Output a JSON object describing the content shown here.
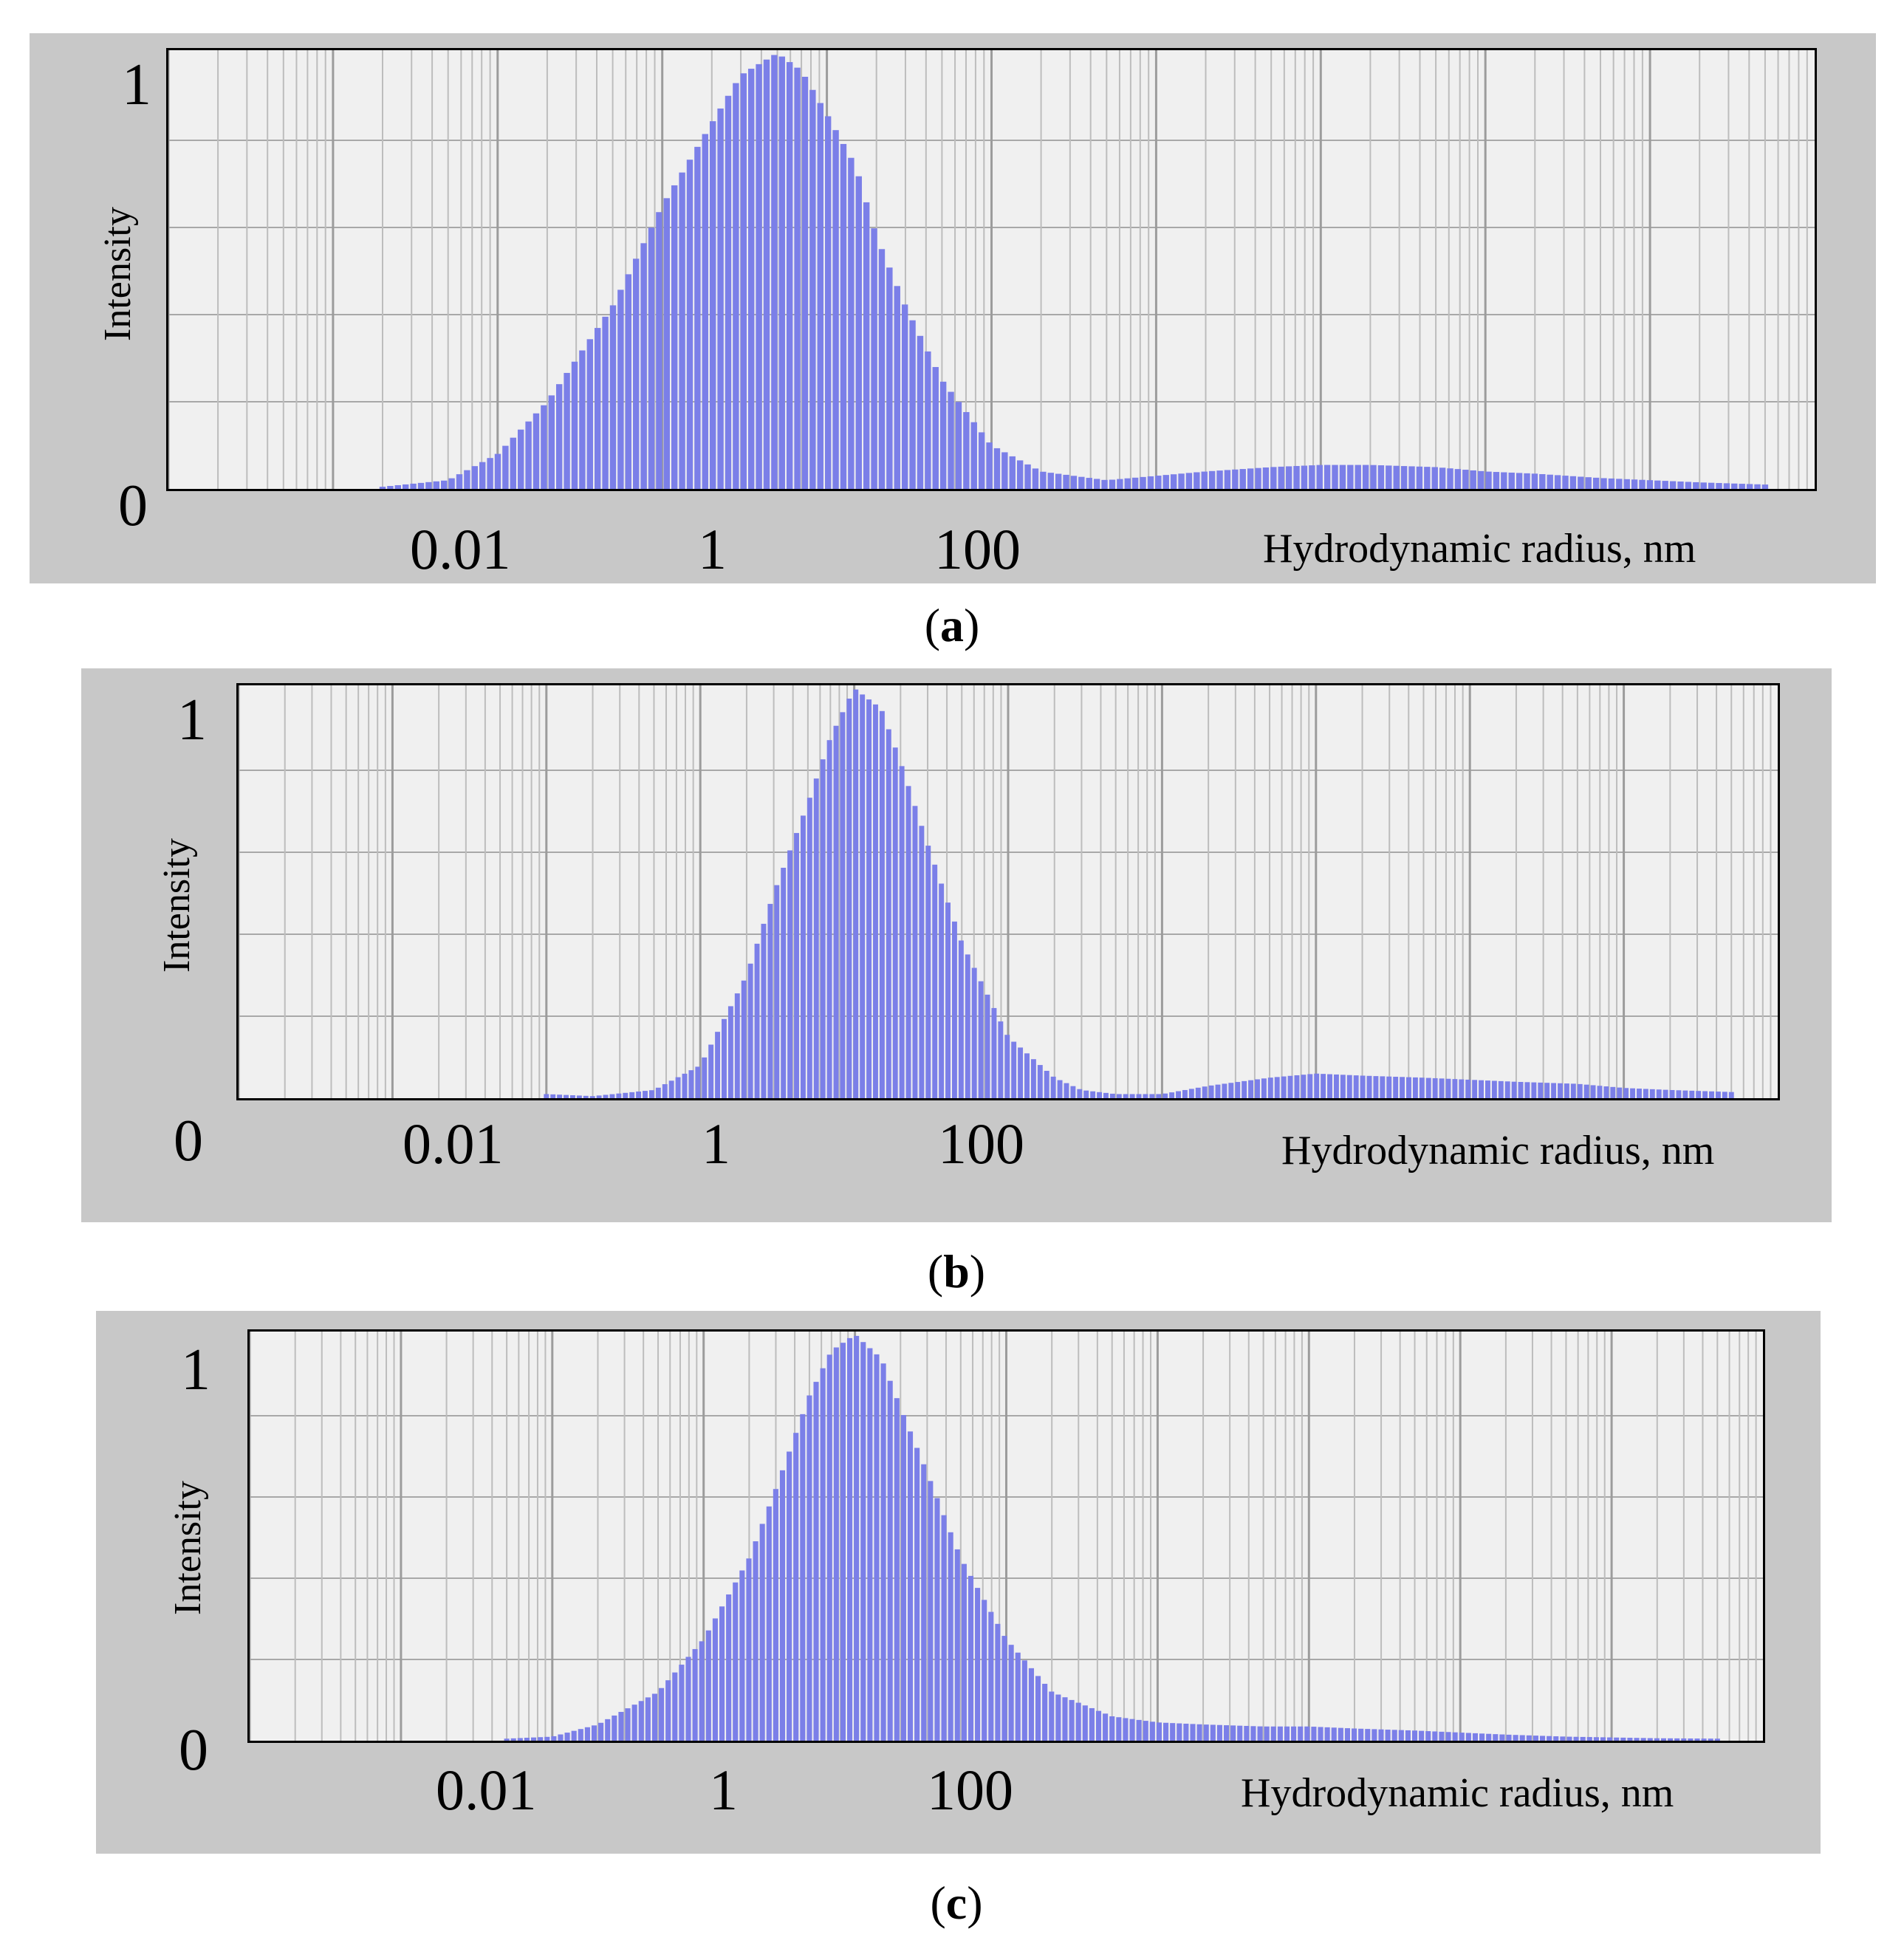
{
  "chart_data": [
    {
      "type": "bar",
      "panel": "a",
      "caption_letter": "a",
      "ylabel": "Intensity",
      "xlabel": "Hydrodynamic radius, nm",
      "x_scale": "log",
      "xlim": [
        0.0001,
        1000000
      ],
      "ylim": [
        0,
        1
      ],
      "xticks": [
        "0.01",
        "1",
        "100"
      ],
      "yticks": [
        "0",
        "1"
      ],
      "grid": true,
      "bar_color": "#7b7fe8",
      "series": [
        {
          "x": [
            0.002,
            0.005,
            0.01,
            0.02,
            0.05,
            0.1,
            0.2,
            0.3,
            0.5,
            0.7,
            1,
            1.5,
            2,
            3,
            5,
            10,
            20,
            50,
            100,
            200,
            500,
            1000,
            2000,
            5000,
            10000,
            20000,
            50000,
            100000,
            200000,
            500000
          ],
          "y": [
            0.005,
            0.02,
            0.08,
            0.2,
            0.42,
            0.65,
            0.84,
            0.95,
            1.0,
            0.96,
            0.86,
            0.74,
            0.58,
            0.42,
            0.25,
            0.1,
            0.04,
            0.02,
            0.03,
            0.04,
            0.05,
            0.055,
            0.055,
            0.05,
            0.04,
            0.035,
            0.025,
            0.02,
            0.015,
            0.01
          ]
        }
      ]
    },
    {
      "type": "bar",
      "panel": "b",
      "caption_letter": "b",
      "ylabel": "Intensity",
      "xlabel": "Hydrodynamic radius, nm",
      "x_scale": "log",
      "xlim": [
        0.0001,
        1000000
      ],
      "ylim": [
        0,
        1
      ],
      "xticks": [
        "0.01",
        "1",
        "100"
      ],
      "yticks": [
        "0",
        "1"
      ],
      "grid": true,
      "bar_color": "#7b7fe8",
      "series": [
        {
          "x": [
            0.01,
            0.02,
            0.05,
            0.1,
            0.2,
            0.3,
            0.5,
            0.7,
            1,
            1.5,
            2,
            3,
            5,
            10,
            20,
            30,
            50,
            100,
            200,
            500,
            1000,
            2000,
            5000,
            10000,
            20000,
            50000,
            100000,
            200000,
            500000
          ],
          "y": [
            0.01,
            0.005,
            0.02,
            0.08,
            0.3,
            0.5,
            0.72,
            0.88,
            1.0,
            0.95,
            0.82,
            0.62,
            0.38,
            0.15,
            0.05,
            0.02,
            0.01,
            0.01,
            0.03,
            0.05,
            0.06,
            0.055,
            0.05,
            0.045,
            0.04,
            0.035,
            0.025,
            0.02,
            0.015
          ]
        }
      ]
    },
    {
      "type": "bar",
      "panel": "c",
      "caption_letter": "c",
      "ylabel": "Intensity",
      "xlabel": "Hydrodynamic radius, nm",
      "x_scale": "log",
      "xlim": [
        0.0001,
        1000000
      ],
      "ylim": [
        0,
        1
      ],
      "xticks": [
        "0.01",
        "1",
        "100"
      ],
      "yticks": [
        "0",
        "1"
      ],
      "grid": true,
      "bar_color": "#7b7fe8",
      "series": [
        {
          "x": [
            0.005,
            0.01,
            0.02,
            0.05,
            0.1,
            0.2,
            0.3,
            0.5,
            0.7,
            1,
            1.5,
            2,
            3,
            5,
            10,
            20,
            50,
            100,
            200,
            500,
            1000,
            2000,
            5000,
            10000,
            20000,
            50000,
            100000,
            200000,
            500000
          ],
          "y": [
            0.005,
            0.01,
            0.04,
            0.12,
            0.25,
            0.45,
            0.62,
            0.85,
            0.96,
            1.0,
            0.94,
            0.82,
            0.66,
            0.45,
            0.25,
            0.12,
            0.06,
            0.045,
            0.04,
            0.035,
            0.035,
            0.03,
            0.025,
            0.02,
            0.015,
            0.01,
            0.008,
            0.006,
            0.005
          ]
        }
      ]
    }
  ]
}
